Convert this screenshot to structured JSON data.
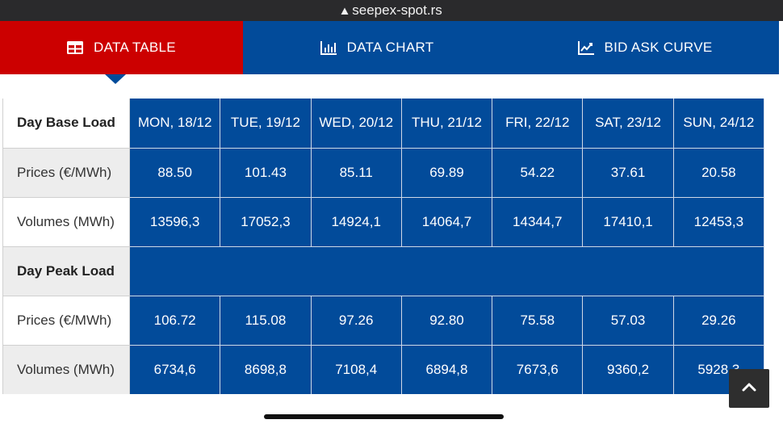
{
  "browser": {
    "url": "seepex-spot.rs",
    "lock_icon": "lock-icon"
  },
  "tabs": [
    {
      "label": "DATA TABLE",
      "icon": "table-icon",
      "active": true,
      "color": "#cc0000"
    },
    {
      "label": "DATA CHART",
      "icon": "bar-chart-icon",
      "active": false,
      "color": "#024b9a"
    },
    {
      "label": "BID ASK CURVE",
      "icon": "line-chart-icon",
      "active": false,
      "color": "#024b9a"
    }
  ],
  "table": {
    "days": [
      "MON, 18/12",
      "TUE, 19/12",
      "WED, 20/12",
      "THU, 21/12",
      "FRI, 22/12",
      "SAT, 23/12",
      "SUN, 24/12"
    ],
    "base": {
      "title": "Day Base Load",
      "prices_label": "Prices (€/MWh)",
      "prices": [
        "88.50",
        "101.43",
        "85.11",
        "69.89",
        "54.22",
        "37.61",
        "20.58"
      ],
      "volumes_label": "Volumes (MWh)",
      "volumes": [
        "13596,3",
        "17052,3",
        "14924,1",
        "14064,7",
        "14344,7",
        "17410,1",
        "12453,3"
      ]
    },
    "peak": {
      "title": "Day Peak Load",
      "prices_label": "Prices (€/MWh)",
      "prices": [
        "106.72",
        "115.08",
        "97.26",
        "92.80",
        "75.58",
        "57.03",
        "29.26"
      ],
      "volumes_label": "Volumes (MWh)",
      "volumes": [
        "6734,6",
        "8698,8",
        "7108,4",
        "6894,8",
        "7673,6",
        "9360,2",
        "5928,3"
      ]
    }
  },
  "scroll_top_icon": "chevron-up-icon",
  "colors": {
    "accent_red": "#cc0000",
    "brand_blue": "#024b9a"
  }
}
